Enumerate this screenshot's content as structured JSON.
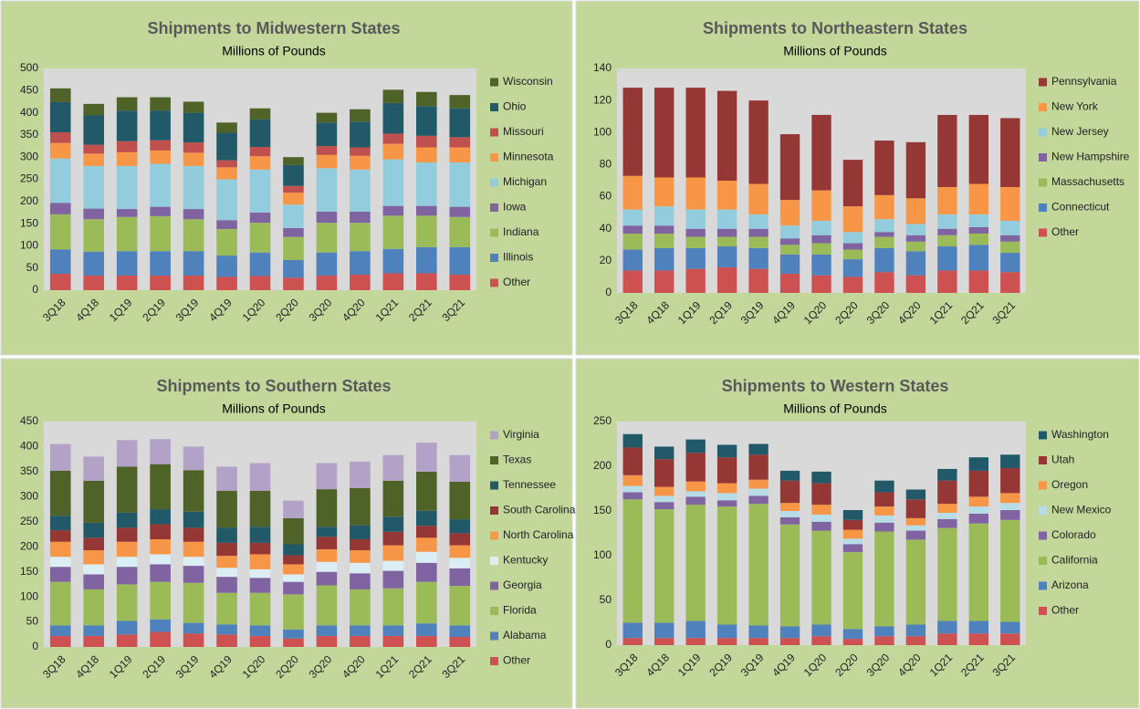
{
  "chart_data": [
    {
      "type": "bar",
      "stacked": true,
      "legend": "right",
      "title": "Shipments to Midwestern States",
      "subtitle": "Millions of Pounds",
      "categories": [
        "3Q18",
        "4Q18",
        "1Q19",
        "2Q19",
        "3Q19",
        "4Q19",
        "1Q20",
        "2Q20",
        "3Q20",
        "4Q20",
        "1Q21",
        "2Q21",
        "3Q21"
      ],
      "ylim": [
        0,
        500
      ],
      "yticks": [
        0,
        50,
        100,
        150,
        200,
        250,
        300,
        350,
        400,
        450,
        500
      ],
      "series": [
        {
          "name": "Other",
          "color": "#cd5150",
          "values": [
            37,
            33,
            33,
            33,
            33,
            30,
            32,
            28,
            33,
            35,
            38,
            38,
            35
          ]
        },
        {
          "name": "Illinois",
          "color": "#4f81bd",
          "values": [
            55,
            54,
            55,
            55,
            55,
            48,
            53,
            40,
            52,
            53,
            55,
            59,
            62
          ]
        },
        {
          "name": "Indiana",
          "color": "#9bbb59",
          "values": [
            79,
            73,
            77,
            79,
            72,
            60,
            67,
            52,
            67,
            64,
            75,
            71,
            68
          ]
        },
        {
          "name": "Iowa",
          "color": "#8064a2",
          "values": [
            26,
            24,
            18,
            21,
            23,
            20,
            23,
            20,
            25,
            25,
            22,
            22,
            23
          ]
        },
        {
          "name": "Michigan",
          "color": "#93cddd",
          "values": [
            100,
            96,
            97,
            97,
            97,
            92,
            97,
            53,
            98,
            95,
            105,
            98,
            100
          ]
        },
        {
          "name": "Minnesota",
          "color": "#f79646",
          "values": [
            35,
            28,
            31,
            30,
            30,
            27,
            30,
            27,
            30,
            31,
            35,
            34,
            34
          ]
        },
        {
          "name": "Missouri",
          "color": "#c0504d",
          "values": [
            24,
            20,
            25,
            23,
            23,
            16,
            21,
            15,
            20,
            19,
            23,
            26,
            23
          ]
        },
        {
          "name": "Ohio",
          "color": "#215968",
          "values": [
            68,
            66,
            69,
            67,
            67,
            62,
            62,
            47,
            53,
            58,
            69,
            67,
            65
          ]
        },
        {
          "name": "Wisconsin",
          "color": "#4f6228",
          "values": [
            31,
            26,
            30,
            30,
            25,
            23,
            25,
            18,
            22,
            28,
            30,
            32,
            30
          ]
        }
      ]
    },
    {
      "type": "bar",
      "stacked": true,
      "legend": "right",
      "title": "Shipments to Northeastern States",
      "subtitle": "Millions of Pounds",
      "categories": [
        "3Q18",
        "4Q18",
        "1Q19",
        "2Q19",
        "3Q19",
        "4Q19",
        "1Q20",
        "2Q20",
        "3Q20",
        "4Q20",
        "1Q21",
        "2Q21",
        "3Q21"
      ],
      "ylim": [
        0,
        140
      ],
      "yticks": [
        0,
        20,
        40,
        60,
        80,
        100,
        120,
        140
      ],
      "series": [
        {
          "name": "Other",
          "color": "#cd5150",
          "values": [
            14,
            14,
            15,
            16,
            15,
            12,
            11,
            10,
            13,
            11,
            14,
            14,
            13
          ]
        },
        {
          "name": "Connecticut",
          "color": "#4f81bd",
          "values": [
            13,
            14,
            13,
            13,
            13,
            12,
            13,
            11,
            15,
            15,
            15,
            16,
            12
          ]
        },
        {
          "name": "Massachusetts",
          "color": "#9bbb59",
          "values": [
            10,
            9,
            7,
            6,
            7,
            6,
            7,
            6,
            7,
            6,
            7,
            7,
            7
          ]
        },
        {
          "name": "New Hampshire",
          "color": "#8064a2",
          "values": [
            5,
            5,
            5,
            5,
            5,
            4,
            5,
            4,
            3,
            4,
            4,
            4,
            4
          ]
        },
        {
          "name": "New Jersey",
          "color": "#93cddd",
          "values": [
            10,
            12,
            12,
            12,
            9,
            8,
            9,
            7,
            8,
            7,
            9,
            8,
            9
          ]
        },
        {
          "name": "New York",
          "color": "#f79646",
          "values": [
            21,
            18,
            20,
            18,
            19,
            16,
            19,
            16,
            15,
            16,
            17,
            19,
            21
          ]
        },
        {
          "name": "Pennsylvania",
          "color": "#953735",
          "values": [
            55,
            56,
            56,
            56,
            52,
            41,
            47,
            29,
            34,
            35,
            45,
            43,
            43
          ]
        }
      ]
    },
    {
      "type": "bar",
      "stacked": true,
      "legend": "right",
      "title": "Shipments to Southern States",
      "subtitle": "Millions of Pounds",
      "categories": [
        "3Q18",
        "4Q18",
        "1Q19",
        "2Q19",
        "3Q19",
        "4Q19",
        "1Q20",
        "2Q20",
        "3Q20",
        "4Q20",
        "1Q21",
        "2Q21",
        "3Q21"
      ],
      "ylim": [
        0,
        450
      ],
      "yticks": [
        0,
        50,
        100,
        150,
        200,
        250,
        300,
        350,
        400,
        450
      ],
      "series": [
        {
          "name": "Other",
          "color": "#cd5150",
          "values": [
            22,
            22,
            25,
            30,
            27,
            25,
            22,
            17,
            22,
            22,
            22,
            22,
            20
          ]
        },
        {
          "name": "Alabama",
          "color": "#4f81bd",
          "values": [
            21,
            21,
            27,
            25,
            21,
            20,
            21,
            18,
            21,
            21,
            21,
            25,
            23
          ]
        },
        {
          "name": "Florida",
          "color": "#9bbb59",
          "values": [
            87,
            72,
            73,
            75,
            80,
            63,
            65,
            70,
            80,
            72,
            74,
            83,
            79
          ]
        },
        {
          "name": "Georgia",
          "color": "#8064a2",
          "values": [
            30,
            30,
            35,
            35,
            34,
            32,
            30,
            25,
            27,
            32,
            35,
            38,
            35
          ]
        },
        {
          "name": "Kentucky",
          "color": "#daeef3",
          "values": [
            20,
            20,
            20,
            20,
            18,
            18,
            17,
            15,
            20,
            21,
            20,
            22,
            21
          ]
        },
        {
          "name": "North Carolina",
          "color": "#f79646",
          "values": [
            30,
            28,
            30,
            30,
            30,
            24,
            30,
            20,
            25,
            25,
            31,
            28,
            25
          ]
        },
        {
          "name": "South Carolina",
          "color": "#953735",
          "values": [
            23,
            25,
            28,
            30,
            28,
            26,
            23,
            18,
            25,
            22,
            27,
            24,
            24
          ]
        },
        {
          "name": "Tennessee",
          "color": "#215968",
          "values": [
            29,
            30,
            30,
            30,
            32,
            30,
            32,
            22,
            20,
            28,
            30,
            30,
            28
          ]
        },
        {
          "name": "Texas",
          "color": "#4f6228",
          "values": [
            90,
            84,
            92,
            90,
            83,
            74,
            72,
            52,
            75,
            74,
            72,
            78,
            75
          ]
        },
        {
          "name": "Virginia",
          "color": "#b3a2c7",
          "values": [
            53,
            48,
            53,
            50,
            47,
            48,
            55,
            35,
            52,
            53,
            51,
            58,
            53
          ]
        }
      ]
    },
    {
      "type": "bar",
      "stacked": true,
      "legend": "right",
      "title": "Shipments to Western States",
      "subtitle": "Millions of Pounds",
      "categories": [
        "3Q18",
        "4Q18",
        "1Q19",
        "2Q19",
        "3Q19",
        "4Q19",
        "1Q20",
        "2Q20",
        "3Q20",
        "4Q20",
        "1Q21",
        "2Q21",
        "3Q21"
      ],
      "ylim": [
        0,
        250
      ],
      "yticks": [
        0,
        50,
        100,
        150,
        200,
        250
      ],
      "series": [
        {
          "name": "Other",
          "color": "#cd5150",
          "values": [
            8,
            8,
            8,
            8,
            8,
            8,
            10,
            7,
            10,
            10,
            13,
            13,
            13
          ]
        },
        {
          "name": "Arizona",
          "color": "#4f81bd",
          "values": [
            17,
            17,
            19,
            15,
            14,
            13,
            13,
            11,
            11,
            13,
            14,
            14,
            13
          ]
        },
        {
          "name": "California",
          "color": "#9bbb59",
          "values": [
            138,
            127,
            130,
            132,
            136,
            114,
            105,
            86,
            106,
            95,
            104,
            109,
            114
          ]
        },
        {
          "name": "Colorado",
          "color": "#8064a2",
          "values": [
            8,
            8,
            9,
            7,
            9,
            8,
            10,
            9,
            10,
            10,
            10,
            11,
            11
          ]
        },
        {
          "name": "New Mexico",
          "color": "#b7dee8",
          "values": [
            7,
            7,
            6,
            8,
            8,
            7,
            8,
            6,
            8,
            6,
            7,
            8,
            8
          ]
        },
        {
          "name": "Oregon",
          "color": "#f79646",
          "values": [
            12,
            10,
            11,
            11,
            10,
            9,
            11,
            10,
            10,
            8,
            10,
            11,
            11
          ]
        },
        {
          "name": "Utah",
          "color": "#953735",
          "values": [
            31,
            31,
            32,
            29,
            28,
            25,
            24,
            11,
            16,
            21,
            26,
            29,
            28
          ]
        },
        {
          "name": "Washington",
          "color": "#215968",
          "values": [
            15,
            14,
            15,
            14,
            12,
            11,
            13,
            11,
            13,
            11,
            13,
            15,
            15
          ]
        }
      ]
    }
  ]
}
